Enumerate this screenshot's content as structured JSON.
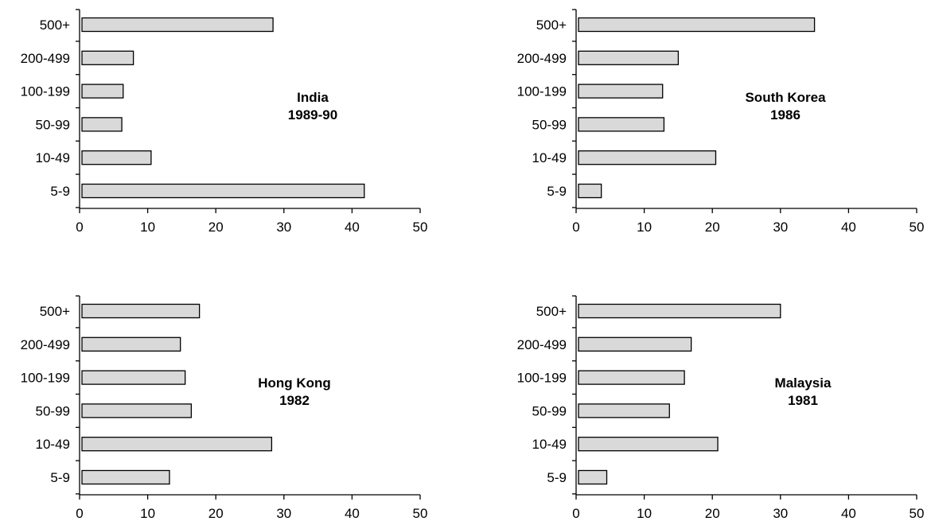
{
  "chart_data": [
    {
      "type": "bar",
      "orientation": "horizontal",
      "title": "",
      "annotation": [
        "India",
        "1989-90"
      ],
      "categories": [
        "5-9",
        "10-49",
        "50-99",
        "100-199",
        "200-499",
        "500+"
      ],
      "values": [
        41.8,
        10.5,
        6.2,
        6.4,
        7.9,
        28.4
      ],
      "xlim": [
        0,
        50
      ],
      "xticks": [
        "0",
        "10",
        "20",
        "30",
        "40",
        "50"
      ],
      "xlabel": "",
      "ylabel": "",
      "grid": false,
      "bar_color": "#d9d9d9"
    },
    {
      "type": "bar",
      "orientation": "horizontal",
      "title": "",
      "annotation": [
        "South Korea",
        "1986"
      ],
      "categories": [
        "5-9",
        "10-49",
        "50-99",
        "100-199",
        "200-499",
        "500+"
      ],
      "values": [
        3.7,
        20.5,
        12.9,
        12.7,
        15.0,
        35.0
      ],
      "xlim": [
        0,
        50
      ],
      "xticks": [
        "0",
        "10",
        "20",
        "30",
        "40",
        "50"
      ],
      "xlabel": "",
      "ylabel": "",
      "grid": false,
      "bar_color": "#d9d9d9"
    },
    {
      "type": "bar",
      "orientation": "horizontal",
      "title": "",
      "annotation": [
        "Hong Kong",
        "1982"
      ],
      "categories": [
        "5-9",
        "10-49",
        "50-99",
        "100-199",
        "200-499",
        "500+"
      ],
      "values": [
        13.2,
        28.2,
        16.4,
        15.5,
        14.8,
        17.6
      ],
      "xlim": [
        0,
        50
      ],
      "xticks": [
        "0",
        "10",
        "20",
        "30",
        "40",
        "50"
      ],
      "xlabel": "",
      "ylabel": "",
      "grid": false,
      "bar_color": "#d9d9d9"
    },
    {
      "type": "bar",
      "orientation": "horizontal",
      "title": "",
      "annotation": [
        "Malaysia",
        "1981"
      ],
      "categories": [
        "5-9",
        "10-49",
        "50-99",
        "100-199",
        "200-499",
        "500+"
      ],
      "values": [
        4.5,
        20.8,
        13.7,
        15.9,
        16.9,
        30.0
      ],
      "xlim": [
        0,
        50
      ],
      "xticks": [
        "0",
        "10",
        "20",
        "30",
        "40",
        "50"
      ],
      "xlabel": "",
      "ylabel": "",
      "grid": false,
      "bar_color": "#d9d9d9"
    }
  ]
}
